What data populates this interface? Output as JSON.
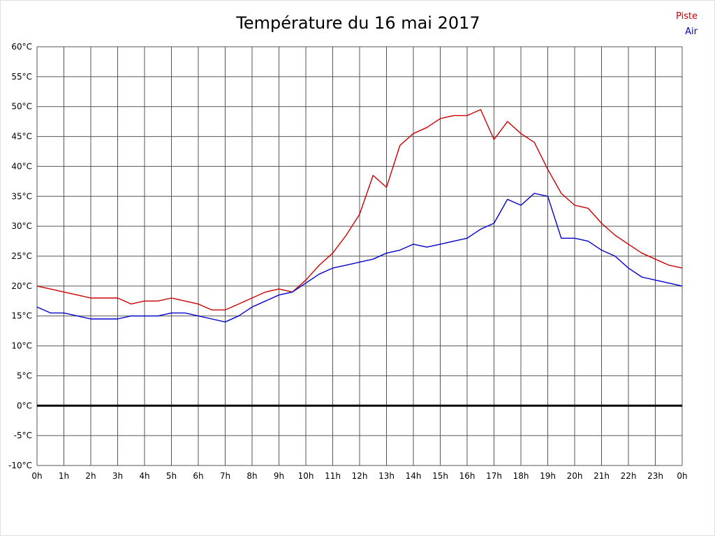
{
  "chart_data": {
    "type": "line",
    "title": "Température du 16 mai 2017",
    "xlabel": "",
    "ylabel": "",
    "xlim": [
      0,
      24
    ],
    "ylim": [
      -10,
      60
    ],
    "y_step": 5,
    "grid": true,
    "grid_color": "#555555",
    "zero_line": {
      "value": 0,
      "color": "#000000",
      "width": 3
    },
    "legend_position": "top-right",
    "x_tick_labels": [
      "0h",
      "1h",
      "2h",
      "3h",
      "4h",
      "5h",
      "6h",
      "7h",
      "8h",
      "9h",
      "10h",
      "11h",
      "12h",
      "13h",
      "14h",
      "15h",
      "16h",
      "17h",
      "18h",
      "19h",
      "20h",
      "21h",
      "22h",
      "23h",
      "0h"
    ],
    "y_tick_labels": [
      "60°C",
      "55°C",
      "50°C",
      "45°C",
      "40°C",
      "35°C",
      "30°C",
      "25°C",
      "20°C",
      "15°C",
      "10°C",
      "5°C",
      "0°C",
      "-5°C",
      "-10°C"
    ],
    "x": [
      0,
      0.5,
      1,
      1.5,
      2,
      2.5,
      3,
      3.5,
      4,
      4.5,
      5,
      5.5,
      6,
      6.5,
      7,
      7.5,
      8,
      8.5,
      9,
      9.5,
      10,
      10.5,
      11,
      11.5,
      12,
      12.5,
      13,
      13.5,
      14,
      14.5,
      15,
      15.5,
      16,
      16.5,
      17,
      17.5,
      18,
      18.5,
      19,
      19.5,
      20,
      20.5,
      21,
      21.5,
      22,
      22.5,
      23,
      23.5,
      24
    ],
    "series": [
      {
        "name": "Piste",
        "color": "#cc0000",
        "values": [
          20,
          19.5,
          19,
          18.5,
          18,
          18,
          18,
          17,
          17.5,
          17.5,
          18,
          17.5,
          17,
          16,
          16,
          17,
          18,
          19,
          19.5,
          19,
          21,
          23.5,
          25.5,
          28.5,
          32,
          38.5,
          36.5,
          43.5,
          45.5,
          46.5,
          48,
          48.5,
          48.5,
          49.5,
          44.5,
          47.5,
          45.5,
          44,
          39.5,
          35.5,
          33.5,
          33,
          30.5,
          28.5,
          27,
          25.5,
          24.5,
          23.5,
          23
        ]
      },
      {
        "name": "Air",
        "color": "#0000cc",
        "values": [
          16.5,
          15.5,
          15.5,
          15,
          14.5,
          14.5,
          14.5,
          15,
          15,
          15,
          15.5,
          15.5,
          15,
          14.5,
          14,
          15,
          16.5,
          17.5,
          18.5,
          19,
          20.5,
          22,
          23,
          23.5,
          24,
          24.5,
          25.5,
          26,
          27,
          26.5,
          27,
          27.5,
          28,
          29.5,
          30.5,
          34.5,
          33.5,
          35.5,
          35,
          28,
          28,
          27.5,
          26,
          25,
          23,
          21.5,
          21,
          20.5,
          20
        ]
      }
    ]
  }
}
